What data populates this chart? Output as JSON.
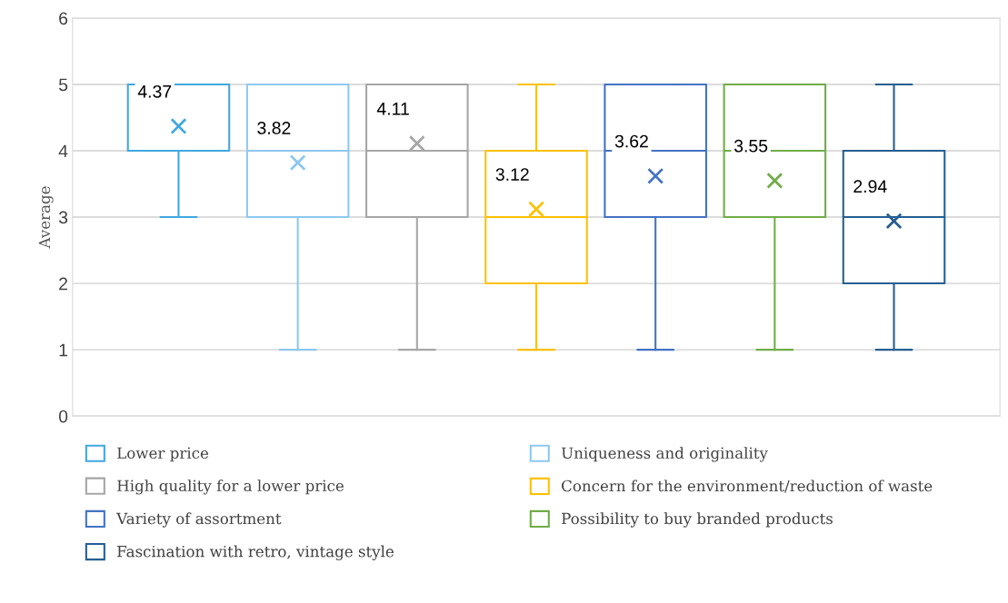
{
  "chart_data": {
    "type": "box",
    "ylabel": "Average",
    "categories": [
      null
    ],
    "ylim": [
      0,
      6
    ],
    "yticks": [
      0,
      1,
      2,
      3,
      4,
      5,
      6
    ],
    "grid": "y",
    "legend": "bottom",
    "marker": "cross",
    "series": [
      {
        "name": "Lower price",
        "color": "#41a7e0",
        "value_labels": [
          "4.37"
        ],
        "boxes": [
          {
            "low": 3,
            "q1": 4,
            "median": 5,
            "q3": 5,
            "high": 5,
            "mean": 4.37
          }
        ]
      },
      {
        "name": "Uniqueness and originality",
        "color": "#8dc8ef",
        "value_labels": [
          "3.82"
        ],
        "boxes": [
          {
            "low": 1,
            "q1": 3,
            "median": 4,
            "q3": 5,
            "high": 5,
            "mean": 3.82
          }
        ]
      },
      {
        "name": "High quality for a lower price",
        "color": "#a6a6a6",
        "value_labels": [
          "4.11"
        ],
        "boxes": [
          {
            "low": 1,
            "q1": 3,
            "median": 4,
            "q3": 5,
            "high": 5,
            "mean": 4.11
          }
        ]
      },
      {
        "name": "Concern for the environment/reduction of waste",
        "color": "#ffc000",
        "value_labels": [
          "3.12"
        ],
        "boxes": [
          {
            "low": 1,
            "q1": 2,
            "median": 3,
            "q3": 4,
            "high": 5,
            "mean": 3.12
          }
        ]
      },
      {
        "name": "Variety of assortment",
        "color": "#4472c4",
        "value_labels": [
          "3.62"
        ],
        "boxes": [
          {
            "low": 1,
            "q1": 3,
            "median": 4,
            "q3": 5,
            "high": 5,
            "mean": 3.62
          }
        ]
      },
      {
        "name": "Possibility to buy branded products",
        "color": "#70ad47",
        "value_labels": [
          "3.55"
        ],
        "boxes": [
          {
            "low": 1,
            "q1": 3,
            "median": 4,
            "q3": 5,
            "high": 5,
            "mean": 3.55
          }
        ]
      },
      {
        "name": "Fascination with retro, vintage style",
        "color": "#255e91",
        "value_labels": [
          "2.94"
        ],
        "boxes": [
          {
            "low": 1,
            "q1": 2,
            "median": 3,
            "q3": 4,
            "high": 5,
            "mean": 2.94
          }
        ]
      }
    ]
  }
}
